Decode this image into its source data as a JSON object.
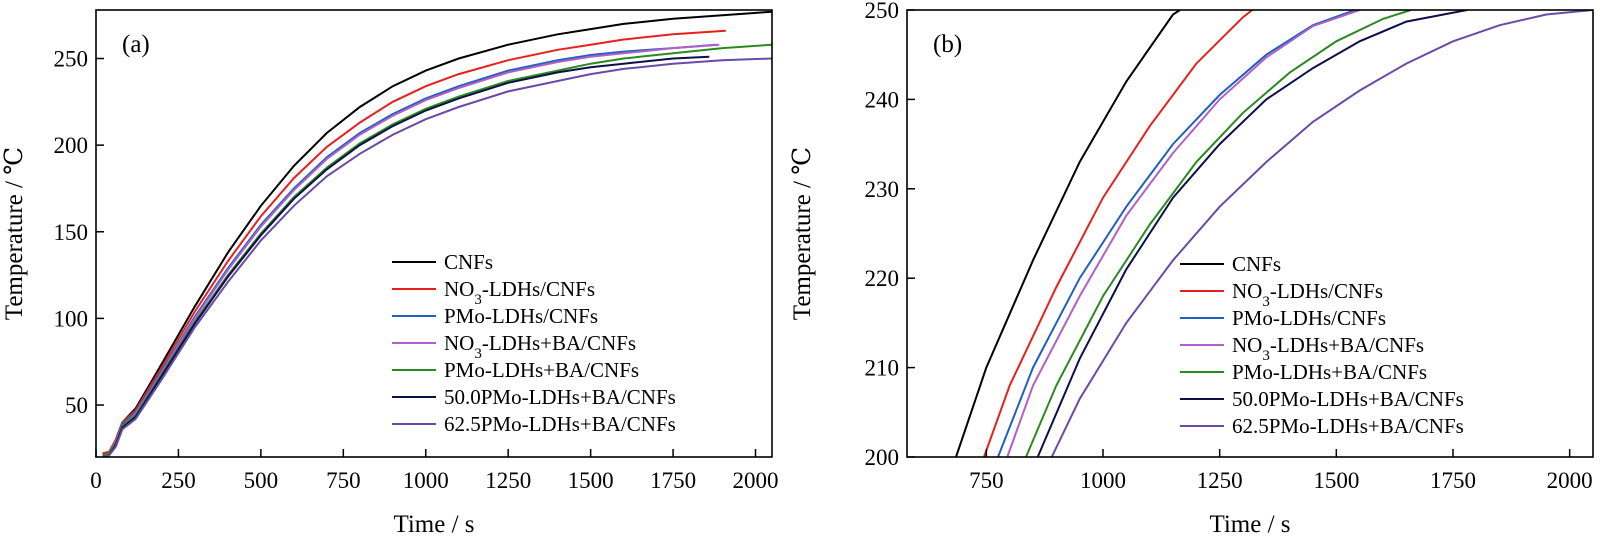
{
  "chart_data": [
    {
      "panel": "(a)",
      "type": "line",
      "xlabel": "Time / s",
      "ylabel": "Temperature / ℃",
      "xlim": [
        0,
        2050
      ],
      "ylim": [
        20,
        278
      ],
      "xticks": [
        0,
        250,
        500,
        750,
        1000,
        1250,
        1500,
        1750,
        2000
      ],
      "yticks": [
        50,
        100,
        150,
        200,
        250
      ],
      "grid": false,
      "legend_position": "bottom-right",
      "series": [
        {
          "name": "CNFs",
          "label_main": "CNFs",
          "label_sub": "",
          "label_rest": "",
          "color": "#000000",
          "x": [
            20,
            40,
            60,
            80,
            120,
            200,
            300,
            400,
            500,
            600,
            700,
            800,
            900,
            1000,
            1100,
            1250,
            1400,
            1500,
            1600,
            1750,
            1900,
            2050
          ],
          "y": [
            22,
            23,
            30,
            40,
            48,
            74,
            107,
            138,
            165,
            188,
            207,
            222,
            234,
            243,
            250,
            258,
            264,
            267,
            270,
            273,
            275,
            277
          ]
        },
        {
          "name": "NO3-LDHs/CNFs",
          "label_main": "NO",
          "label_sub": "3",
          "label_rest": "-LDHs/CNFs",
          "color": "#e8201c",
          "x": [
            20,
            40,
            60,
            80,
            120,
            200,
            300,
            400,
            500,
            600,
            700,
            800,
            900,
            1000,
            1100,
            1250,
            1400,
            1500,
            1600,
            1750,
            1910
          ],
          "y": [
            22,
            23,
            30,
            40,
            47,
            72,
            104,
            133,
            159,
            181,
            199,
            213,
            225,
            234,
            241,
            249,
            255,
            258,
            261,
            264,
            266
          ]
        },
        {
          "name": "PMo-LDHs/CNFs",
          "label_main": "PMo-LDHs/CNFs",
          "label_sub": "",
          "label_rest": "",
          "color": "#2060c0",
          "x": [
            20,
            40,
            60,
            80,
            120,
            200,
            300,
            400,
            500,
            600,
            700,
            800,
            900,
            1000,
            1100,
            1250,
            1400,
            1500,
            1600,
            1750,
            1880
          ],
          "y": [
            21,
            22,
            29,
            39,
            46,
            70,
            101,
            129,
            154,
            175,
            193,
            207,
            218,
            227,
            234,
            243,
            249,
            252,
            254,
            256,
            258
          ]
        },
        {
          "name": "NO3-LDHs+BA/CNFs",
          "label_main": "NO",
          "label_sub": "3",
          "label_rest": "-LDHs+BA/CNFs",
          "color": "#b060c8",
          "x": [
            20,
            40,
            60,
            80,
            120,
            200,
            300,
            400,
            500,
            600,
            700,
            800,
            900,
            1000,
            1100,
            1250,
            1400,
            1500,
            1600,
            1750,
            1890
          ],
          "y": [
            21,
            22,
            29,
            38,
            45,
            69,
            100,
            128,
            153,
            174,
            192,
            206,
            217,
            226,
            233,
            242,
            248,
            251,
            253,
            256,
            258
          ]
        },
        {
          "name": "PMo-LDHs+BA/CNFs",
          "label_main": "PMo-LDHs+BA/CNFs",
          "label_sub": "",
          "label_rest": "",
          "color": "#2a8a1e",
          "x": [
            20,
            40,
            60,
            80,
            120,
            200,
            300,
            400,
            500,
            600,
            700,
            800,
            900,
            1000,
            1100,
            1250,
            1400,
            1500,
            1600,
            1750,
            1900,
            2050
          ],
          "y": [
            21,
            22,
            28,
            38,
            44,
            68,
            98,
            125,
            149,
            170,
            187,
            201,
            212,
            221,
            228,
            237,
            243,
            247,
            250,
            253,
            256,
            258
          ]
        },
        {
          "name": "50.0PMo-LDHs+BA/CNFs",
          "label_main": "50.0PMo-LDHs+BA/CNFs",
          "label_sub": "",
          "label_rest": "",
          "color": "#0e0e4a",
          "x": [
            20,
            40,
            60,
            80,
            120,
            200,
            300,
            400,
            500,
            600,
            700,
            800,
            900,
            1000,
            1100,
            1250,
            1400,
            1500,
            1600,
            1750,
            1860
          ],
          "y": [
            20,
            21,
            27,
            37,
            43,
            67,
            97,
            124,
            148,
            169,
            186,
            200,
            211,
            220,
            227,
            236,
            242,
            245,
            247,
            250,
            251
          ]
        },
        {
          "name": "62.5PMo-LDHs+BA/CNFs",
          "label_main": "62.5PMo-LDHs+BA/CNFs",
          "label_sub": "",
          "label_rest": "",
          "color": "#6a4aa8",
          "x": [
            20,
            40,
            60,
            80,
            120,
            200,
            300,
            400,
            500,
            600,
            700,
            800,
            900,
            1000,
            1100,
            1250,
            1400,
            1500,
            1600,
            1750,
            1900,
            2050
          ],
          "y": [
            20,
            21,
            26,
            36,
            42,
            65,
            95,
            121,
            145,
            165,
            182,
            195,
            206,
            215,
            222,
            231,
            237,
            241,
            244,
            247,
            249,
            250
          ]
        }
      ]
    },
    {
      "panel": "(b)",
      "type": "line",
      "xlabel": "Time / s",
      "ylabel": "Temperature / ℃",
      "xlim": [
        580,
        2050
      ],
      "ylim": [
        200,
        250
      ],
      "xticks": [
        750,
        1000,
        1250,
        1500,
        1750,
        2000
      ],
      "yticks": [
        200,
        210,
        220,
        230,
        240,
        250
      ],
      "grid": false,
      "legend_position": "bottom-right",
      "series": [
        {
          "name": "CNFs",
          "label_main": "CNFs",
          "label_sub": "",
          "label_rest": "",
          "color": "#000000",
          "x": [
            685,
            750,
            850,
            950,
            1050,
            1150,
            1165
          ],
          "y": [
            200,
            210,
            222,
            233,
            242,
            249.5,
            250
          ]
        },
        {
          "name": "NO3-LDHs/CNFs",
          "label_main": "NO",
          "label_sub": "3",
          "label_rest": "-LDHs/CNFs",
          "color": "#e8201c",
          "x": [
            745,
            800,
            900,
            1000,
            1100,
            1200,
            1300,
            1320
          ],
          "y": [
            200,
            208,
            219,
            229,
            237,
            244,
            249.2,
            250
          ]
        },
        {
          "name": "PMo-LDHs/CNFs",
          "label_main": "PMo-LDHs/CNFs",
          "label_sub": "",
          "label_rest": "",
          "color": "#2060c0",
          "x": [
            775,
            850,
            950,
            1050,
            1150,
            1250,
            1350,
            1450,
            1540
          ],
          "y": [
            200,
            210,
            220,
            228,
            235,
            240.5,
            245,
            248.3,
            250
          ]
        },
        {
          "name": "NO3-LDHs+BA/CNFs",
          "label_main": "NO",
          "label_sub": "3",
          "label_rest": "-LDHs+BA/CNFs",
          "color": "#b060c8",
          "x": [
            795,
            850,
            950,
            1050,
            1150,
            1250,
            1350,
            1450,
            1550
          ],
          "y": [
            200,
            208,
            218,
            227,
            234,
            240,
            244.7,
            248.2,
            250
          ]
        },
        {
          "name": "PMo-LDHs+BA/CNFs",
          "label_main": "PMo-LDHs+BA/CNFs",
          "label_sub": "",
          "label_rest": "",
          "color": "#2a8a1e",
          "x": [
            835,
            900,
            1000,
            1100,
            1200,
            1300,
            1400,
            1500,
            1600,
            1660
          ],
          "y": [
            200,
            208,
            218,
            226,
            233,
            238.5,
            243,
            246.5,
            249,
            250
          ]
        },
        {
          "name": "50.0PMo-LDHs+BA/CNFs",
          "label_main": "50.0PMo-LDHs+BA/CNFs",
          "label_sub": "",
          "label_rest": "",
          "color": "#0e0e4a",
          "x": [
            860,
            950,
            1050,
            1150,
            1250,
            1350,
            1450,
            1550,
            1650,
            1780
          ],
          "y": [
            200,
            211,
            221,
            229,
            235,
            240,
            243.5,
            246.5,
            248.7,
            250
          ]
        },
        {
          "name": "62.5PMo-LDHs+BA/CNFs",
          "label_main": "62.5PMo-LDHs+BA/CNFs",
          "label_sub": "",
          "label_rest": "",
          "color": "#6a4aa8",
          "x": [
            890,
            950,
            1050,
            1150,
            1250,
            1350,
            1450,
            1550,
            1650,
            1750,
            1850,
            1950,
            2050
          ],
          "y": [
            200,
            206.5,
            215,
            222,
            228,
            233,
            237.5,
            241,
            244,
            246.5,
            248.3,
            249.5,
            250
          ]
        }
      ]
    }
  ]
}
